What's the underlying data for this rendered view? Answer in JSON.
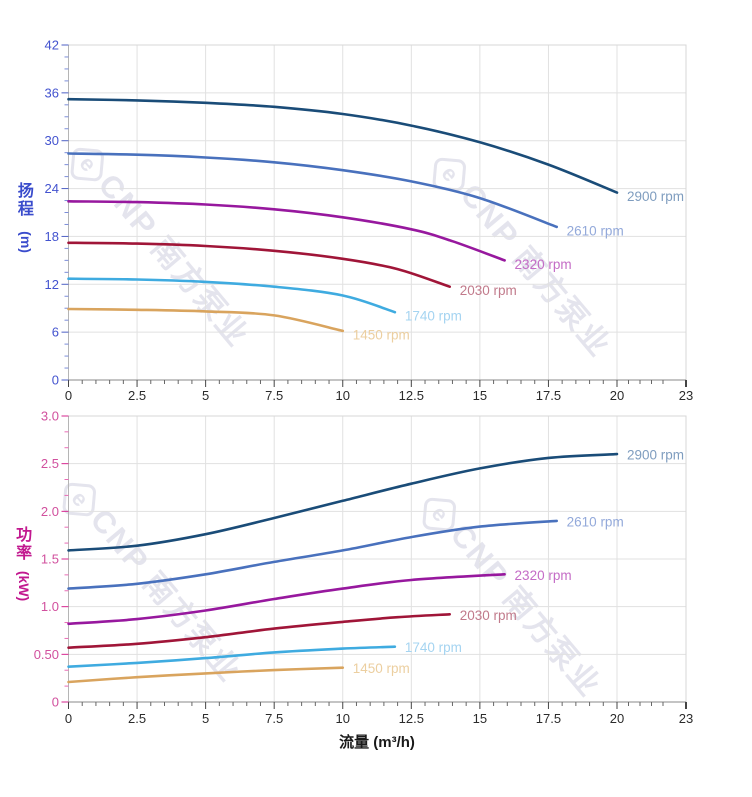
{
  "watermark": {
    "logo_letter": "e",
    "text_latin": "CNP",
    "text_cn": "南方泵业",
    "color": "#e4e4ed"
  },
  "chart_data": [
    {
      "type": "line",
      "title": "",
      "xlabel": "流量 (m³/h)",
      "ylabel": "扬程 (m)",
      "ylabel_cn": "扬程",
      "ylabel_unit": "(m)",
      "xlim": [
        0,
        23
      ],
      "ylim": [
        0,
        42
      ],
      "grid": true,
      "x_ticks": {
        "values": [
          0,
          2.5,
          5,
          7.5,
          10,
          12.5,
          15,
          17.5,
          20,
          23
        ],
        "labels": [
          "0",
          "2.5",
          "5",
          "7.5",
          "10",
          "12.5",
          "15",
          "17.5",
          "20",
          "23"
        ],
        "minor_step": 0.5
      },
      "y_ticks": {
        "values": [
          0,
          6,
          12,
          18,
          24,
          30,
          36,
          42
        ],
        "labels": [
          "0",
          "6",
          "12",
          "18",
          "24",
          "30",
          "36",
          "42"
        ],
        "minor_step": 1.5
      },
      "series": [
        {
          "name": "2900 rpm",
          "color": "#1a4c78",
          "label_color": "#7f9dbf",
          "points": [
            [
              0,
              35.2
            ],
            [
              2.5,
              35.05
            ],
            [
              5,
              34.75
            ],
            [
              7.5,
              34.25
            ],
            [
              10,
              33.35
            ],
            [
              12.5,
              31.9
            ],
            [
              15,
              29.8
            ],
            [
              17.5,
              27.0
            ],
            [
              20,
              23.5
            ]
          ]
        },
        {
          "name": "2610 rpm",
          "color": "#4971bd",
          "label_color": "#93a9da",
          "points": [
            [
              0,
              28.4
            ],
            [
              2.5,
              28.25
            ],
            [
              5,
              27.9
            ],
            [
              7.5,
              27.3
            ],
            [
              10,
              26.3
            ],
            [
              12.5,
              24.9
            ],
            [
              15,
              22.8
            ],
            [
              17.8,
              19.2
            ]
          ]
        },
        {
          "name": "2320 rpm",
          "color": "#97189e",
          "label_color": "#c46cc6",
          "points": [
            [
              0,
              22.4
            ],
            [
              2.5,
              22.3
            ],
            [
              5,
              22.0
            ],
            [
              7.5,
              21.4
            ],
            [
              10,
              20.4
            ],
            [
              12.5,
              18.9
            ],
            [
              14,
              17.4
            ],
            [
              15.9,
              15.0
            ]
          ]
        },
        {
          "name": "2030 rpm",
          "color": "#a01538",
          "label_color": "#c17a8b",
          "points": [
            [
              0,
              17.2
            ],
            [
              2.5,
              17.1
            ],
            [
              5,
              16.8
            ],
            [
              7.5,
              16.2
            ],
            [
              10,
              15.2
            ],
            [
              12,
              13.9
            ],
            [
              13.9,
              11.7
            ]
          ]
        },
        {
          "name": "1740 rpm",
          "color": "#3fabe0",
          "label_color": "#a5d4f1",
          "points": [
            [
              0,
              12.7
            ],
            [
              2.5,
              12.6
            ],
            [
              5,
              12.3
            ],
            [
              7.5,
              11.7
            ],
            [
              10,
              10.6
            ],
            [
              11.9,
              8.5
            ]
          ]
        },
        {
          "name": "1450 rpm",
          "color": "#d9a45e",
          "label_color": "#eccfa0",
          "points": [
            [
              0,
              8.9
            ],
            [
              2.5,
              8.8
            ],
            [
              5,
              8.6
            ],
            [
              7.5,
              8.1
            ],
            [
              10,
              6.15
            ]
          ]
        }
      ]
    },
    {
      "type": "line",
      "title": "",
      "xlabel": "流量 (m³/h)",
      "ylabel": "功率 (kW)",
      "ylabel_cn": "功率",
      "ylabel_unit": "(kW)",
      "xlim": [
        0,
        23
      ],
      "ylim": [
        0,
        3.0
      ],
      "grid": true,
      "x_ticks": {
        "values": [
          0,
          2.5,
          5,
          7.5,
          10,
          12.5,
          15,
          17.5,
          20,
          23
        ],
        "labels": [
          "0",
          "2.5",
          "5",
          "7.5",
          "10",
          "12.5",
          "15",
          "17.5",
          "20",
          "23"
        ],
        "minor_step": 0.5
      },
      "y_ticks": {
        "values": [
          0,
          0.5,
          1.0,
          1.5,
          2.0,
          2.5,
          3.0
        ],
        "labels": [
          "0",
          "0.50",
          "1.0",
          "1.5",
          "2.0",
          "2.5",
          "3.0"
        ],
        "minor_step": 0.1667
      },
      "series": [
        {
          "name": "2900 rpm",
          "color": "#1a4c78",
          "label_color": "#7f9dbf",
          "points": [
            [
              0,
              1.59
            ],
            [
              2.5,
              1.64
            ],
            [
              5,
              1.76
            ],
            [
              7.5,
              1.93
            ],
            [
              10,
              2.11
            ],
            [
              12.5,
              2.29
            ],
            [
              15,
              2.45
            ],
            [
              17.5,
              2.56
            ],
            [
              20,
              2.6
            ]
          ]
        },
        {
          "name": "2610 rpm",
          "color": "#4971bd",
          "label_color": "#93a9da",
          "points": [
            [
              0,
              1.19
            ],
            [
              2.5,
              1.24
            ],
            [
              5,
              1.34
            ],
            [
              7.5,
              1.47
            ],
            [
              10,
              1.59
            ],
            [
              12.5,
              1.73
            ],
            [
              15,
              1.84
            ],
            [
              17.8,
              1.9
            ]
          ]
        },
        {
          "name": "2320 rpm",
          "color": "#97189e",
          "label_color": "#c46cc6",
          "points": [
            [
              0,
              0.82
            ],
            [
              2.5,
              0.87
            ],
            [
              5,
              0.96
            ],
            [
              7.5,
              1.08
            ],
            [
              10,
              1.19
            ],
            [
              12.5,
              1.28
            ],
            [
              15.9,
              1.34
            ]
          ]
        },
        {
          "name": "2030 rpm",
          "color": "#a01538",
          "label_color": "#c17a8b",
          "points": [
            [
              0,
              0.57
            ],
            [
              2.5,
              0.61
            ],
            [
              5,
              0.68
            ],
            [
              7.5,
              0.77
            ],
            [
              10,
              0.84
            ],
            [
              12,
              0.89
            ],
            [
              13.9,
              0.92
            ]
          ]
        },
        {
          "name": "1740 rpm",
          "color": "#3fabe0",
          "label_color": "#a5d4f1",
          "points": [
            [
              0,
              0.37
            ],
            [
              2.5,
              0.41
            ],
            [
              5,
              0.46
            ],
            [
              7.5,
              0.52
            ],
            [
              10,
              0.56
            ],
            [
              11.9,
              0.58
            ]
          ]
        },
        {
          "name": "1450 rpm",
          "color": "#d9a45e",
          "label_color": "#eccfa0",
          "points": [
            [
              0,
              0.21
            ],
            [
              2.5,
              0.26
            ],
            [
              5,
              0.3
            ],
            [
              7.5,
              0.335
            ],
            [
              10,
              0.36
            ]
          ]
        }
      ]
    }
  ]
}
